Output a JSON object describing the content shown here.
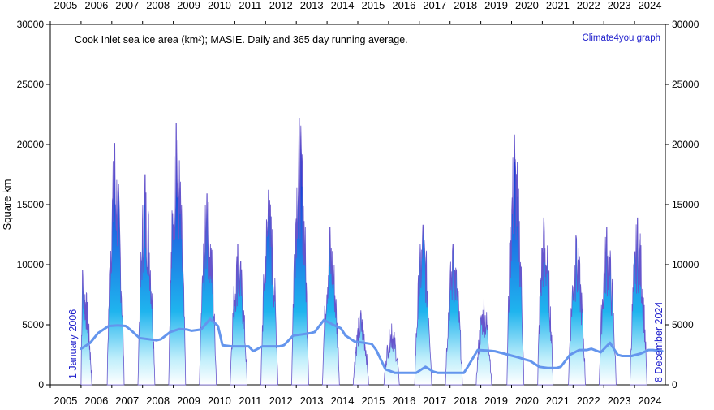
{
  "chart_data": {
    "type": "area",
    "title": "Cook Inlet sea ice area (km²); MASIE. Daily and 365 day running average.",
    "credit": "Climate4you graph",
    "ylabel": "Square km",
    "ylabel_right": "",
    "ylim": [
      0,
      30000
    ],
    "y_ticks": [
      0,
      5000,
      10000,
      15000,
      20000,
      25000,
      30000
    ],
    "y_tick_labels": [
      "0",
      "5000",
      "10000",
      "15000",
      "20000",
      "25000",
      "30000"
    ],
    "xlim": [
      2005,
      2025
    ],
    "x_ticks": [
      2005,
      2006,
      2007,
      2008,
      2009,
      2010,
      2011,
      2012,
      2013,
      2014,
      2015,
      2016,
      2017,
      2018,
      2019,
      2020,
      2021,
      2022,
      2023,
      2024
    ],
    "x_tick_labels": [
      "2005",
      "2006",
      "2007",
      "2008",
      "2009",
      "2010",
      "2011",
      "2012",
      "2013",
      "2014",
      "2015",
      "2016",
      "2017",
      "2018",
      "2019",
      "2020",
      "2021",
      "2022",
      "2023",
      "2024"
    ],
    "start_label": "1 January 2006",
    "end_label": "8 December 2024",
    "grid": false,
    "series": [
      {
        "role": "daily",
        "color": "#6655cc",
        "peaks": [
          {
            "start": 2006.0,
            "end": 2006.35,
            "peak_x": 2006.05,
            "peak": 9500
          },
          {
            "start": 2006.85,
            "end": 2007.4,
            "peak_x": 2007.1,
            "peak": 20100
          },
          {
            "start": 2007.85,
            "end": 2008.4,
            "peak_x": 2008.08,
            "peak": 17500
          },
          {
            "start": 2008.85,
            "end": 2009.4,
            "peak_x": 2009.1,
            "peak": 21800
          },
          {
            "start": 2009.85,
            "end": 2010.4,
            "peak_x": 2010.1,
            "peak": 15900
          },
          {
            "start": 2010.85,
            "end": 2011.4,
            "peak_x": 2011.1,
            "peak": 11700
          },
          {
            "start": 2011.85,
            "end": 2012.4,
            "peak_x": 2012.1,
            "peak": 16200
          },
          {
            "start": 2012.85,
            "end": 2013.4,
            "peak_x": 2013.1,
            "peak": 22200
          },
          {
            "start": 2013.85,
            "end": 2014.4,
            "peak_x": 2014.1,
            "peak": 13100
          },
          {
            "start": 2014.85,
            "end": 2015.35,
            "peak_x": 2015.1,
            "peak": 6200
          },
          {
            "start": 2015.85,
            "end": 2016.35,
            "peak_x": 2016.1,
            "peak": 5100
          },
          {
            "start": 2016.85,
            "end": 2017.4,
            "peak_x": 2017.12,
            "peak": 13300
          },
          {
            "start": 2017.85,
            "end": 2018.4,
            "peak_x": 2018.1,
            "peak": 11700
          },
          {
            "start": 2018.85,
            "end": 2019.35,
            "peak_x": 2019.1,
            "peak": 7200
          },
          {
            "start": 2019.85,
            "end": 2020.4,
            "peak_x": 2020.1,
            "peak": 20800
          },
          {
            "start": 2020.85,
            "end": 2021.35,
            "peak_x": 2021.05,
            "peak": 13900
          },
          {
            "start": 2021.85,
            "end": 2022.4,
            "peak_x": 2022.1,
            "peak": 12400
          },
          {
            "start": 2022.85,
            "end": 2023.4,
            "peak_x": 2023.1,
            "peak": 13100
          },
          {
            "start": 2023.85,
            "end": 2024.4,
            "peak_x": 2024.1,
            "peak": 13900
          }
        ]
      },
      {
        "role": "365-day running average",
        "color": "#6495ed",
        "x": [
          2006.0,
          2006.3,
          2006.55,
          2006.9,
          2007.2,
          2007.45,
          2007.6,
          2007.9,
          2008.2,
          2008.45,
          2008.6,
          2008.9,
          2009.2,
          2009.45,
          2009.6,
          2009.9,
          2010.2,
          2010.45,
          2010.6,
          2010.9,
          2011.2,
          2011.45,
          2011.6,
          2011.9,
          2012.2,
          2012.45,
          2012.6,
          2012.9,
          2013.2,
          2013.45,
          2013.6,
          2013.9,
          2014.2,
          2014.45,
          2014.6,
          2014.9,
          2015.2,
          2015.45,
          2015.6,
          2015.9,
          2016.2,
          2016.45,
          2016.6,
          2016.9,
          2017.2,
          2017.45,
          2017.6,
          2017.9,
          2018.2,
          2018.45,
          2018.6,
          2018.9,
          2019.2,
          2019.45,
          2019.6,
          2019.9,
          2020.2,
          2020.45,
          2020.6,
          2020.9,
          2021.2,
          2021.45,
          2021.6,
          2021.9,
          2022.2,
          2022.45,
          2022.6,
          2022.9,
          2023.2,
          2023.45,
          2023.6,
          2023.9,
          2024.2,
          2024.45,
          2024.6,
          2024.9
        ],
        "y": [
          3000,
          3500,
          4300,
          4900,
          4950,
          4900,
          4600,
          3900,
          3800,
          3700,
          3800,
          4400,
          4650,
          4600,
          4500,
          4600,
          5500,
          4900,
          3300,
          3200,
          3200,
          3200,
          2800,
          3200,
          3200,
          3200,
          3300,
          4100,
          4200,
          4300,
          4400,
          5400,
          5000,
          4700,
          4100,
          3600,
          3500,
          3400,
          2900,
          1300,
          1000,
          1000,
          1000,
          1000,
          1500,
          1100,
          1000,
          1000,
          1000,
          1000,
          1600,
          2900,
          2850,
          2800,
          2700,
          2500,
          2300,
          2100,
          2000,
          1500,
          1400,
          1400,
          1500,
          2500,
          2900,
          2900,
          3000,
          2700,
          3500,
          2500,
          2400,
          2400,
          2600,
          2900,
          2900,
          2800
        ]
      }
    ]
  }
}
